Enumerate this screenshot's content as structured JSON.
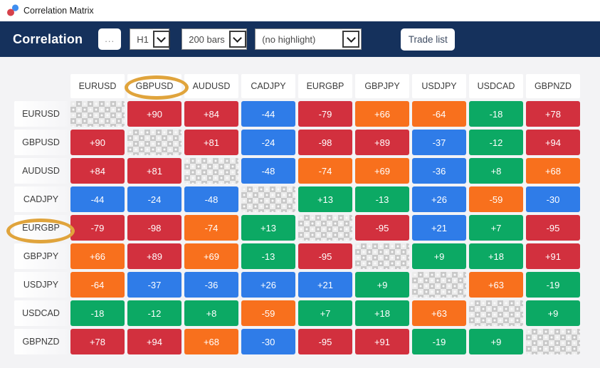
{
  "window": {
    "title": "Correlation Matrix",
    "logo_colors": {
      "blue": "#3f8ef0",
      "red": "#d6414b"
    }
  },
  "toolbar": {
    "bar_color": "#15315c",
    "title": "Correlation",
    "more_button": "...",
    "timeframe_value": "H1",
    "bars_value": "200 bars",
    "highlight_value": "(no highlight)",
    "trade_list_button": "Trade list"
  },
  "matrix": {
    "pairs": [
      "EURUSD",
      "GBPUSD",
      "AUDUSD",
      "CADJPY",
      "EURGBP",
      "GBPJPY",
      "USDJPY",
      "USDCAD",
      "GBPNZD"
    ],
    "colors": {
      "red": "#d2303e",
      "orange": "#f8701d",
      "blue": "#2f7ce8",
      "green": "#0ca964"
    },
    "rows": [
      [
        null,
        {
          "v": "+90",
          "c": "red"
        },
        {
          "v": "+84",
          "c": "red"
        },
        {
          "v": "-44",
          "c": "blue"
        },
        {
          "v": "-79",
          "c": "red"
        },
        {
          "v": "+66",
          "c": "orange"
        },
        {
          "v": "-64",
          "c": "orange"
        },
        {
          "v": "-18",
          "c": "green"
        },
        {
          "v": "+78",
          "c": "red"
        }
      ],
      [
        {
          "v": "+90",
          "c": "red"
        },
        null,
        {
          "v": "+81",
          "c": "red"
        },
        {
          "v": "-24",
          "c": "blue"
        },
        {
          "v": "-98",
          "c": "red"
        },
        {
          "v": "+89",
          "c": "red"
        },
        {
          "v": "-37",
          "c": "blue"
        },
        {
          "v": "-12",
          "c": "green"
        },
        {
          "v": "+94",
          "c": "red"
        }
      ],
      [
        {
          "v": "+84",
          "c": "red"
        },
        {
          "v": "+81",
          "c": "red"
        },
        null,
        {
          "v": "-48",
          "c": "blue"
        },
        {
          "v": "-74",
          "c": "orange"
        },
        {
          "v": "+69",
          "c": "orange"
        },
        {
          "v": "-36",
          "c": "blue"
        },
        {
          "v": "+8",
          "c": "green"
        },
        {
          "v": "+68",
          "c": "orange"
        }
      ],
      [
        {
          "v": "-44",
          "c": "blue"
        },
        {
          "v": "-24",
          "c": "blue"
        },
        {
          "v": "-48",
          "c": "blue"
        },
        null,
        {
          "v": "+13",
          "c": "green"
        },
        {
          "v": "-13",
          "c": "green"
        },
        {
          "v": "+26",
          "c": "blue"
        },
        {
          "v": "-59",
          "c": "orange"
        },
        {
          "v": "-30",
          "c": "blue"
        }
      ],
      [
        {
          "v": "-79",
          "c": "red"
        },
        {
          "v": "-98",
          "c": "red"
        },
        {
          "v": "-74",
          "c": "orange"
        },
        {
          "v": "+13",
          "c": "green"
        },
        null,
        {
          "v": "-95",
          "c": "red"
        },
        {
          "v": "+21",
          "c": "blue"
        },
        {
          "v": "+7",
          "c": "green"
        },
        {
          "v": "-95",
          "c": "red"
        }
      ],
      [
        {
          "v": "+66",
          "c": "orange"
        },
        {
          "v": "+89",
          "c": "red"
        },
        {
          "v": "+69",
          "c": "orange"
        },
        {
          "v": "-13",
          "c": "green"
        },
        {
          "v": "-95",
          "c": "red"
        },
        null,
        {
          "v": "+9",
          "c": "green"
        },
        {
          "v": "+18",
          "c": "green"
        },
        {
          "v": "+91",
          "c": "red"
        }
      ],
      [
        {
          "v": "-64",
          "c": "orange"
        },
        {
          "v": "-37",
          "c": "blue"
        },
        {
          "v": "-36",
          "c": "blue"
        },
        {
          "v": "+26",
          "c": "blue"
        },
        {
          "v": "+21",
          "c": "blue"
        },
        {
          "v": "+9",
          "c": "green"
        },
        null,
        {
          "v": "+63",
          "c": "orange"
        },
        {
          "v": "-19",
          "c": "green"
        }
      ],
      [
        {
          "v": "-18",
          "c": "green"
        },
        {
          "v": "-12",
          "c": "green"
        },
        {
          "v": "+8",
          "c": "green"
        },
        {
          "v": "-59",
          "c": "orange"
        },
        {
          "v": "+7",
          "c": "green"
        },
        {
          "v": "+18",
          "c": "green"
        },
        {
          "v": "+63",
          "c": "orange"
        },
        null,
        {
          "v": "+9",
          "c": "green"
        }
      ],
      [
        {
          "v": "+78",
          "c": "red"
        },
        {
          "v": "+94",
          "c": "red"
        },
        {
          "v": "+68",
          "c": "orange"
        },
        {
          "v": "-30",
          "c": "blue"
        },
        {
          "v": "-95",
          "c": "red"
        },
        {
          "v": "+91",
          "c": "red"
        },
        {
          "v": "-19",
          "c": "green"
        },
        {
          "v": "+9",
          "c": "green"
        },
        null
      ]
    ]
  },
  "annotations": {
    "color": "#e0a43c",
    "circled_column": "GBPUSD",
    "circled_row": "EURGBP"
  }
}
